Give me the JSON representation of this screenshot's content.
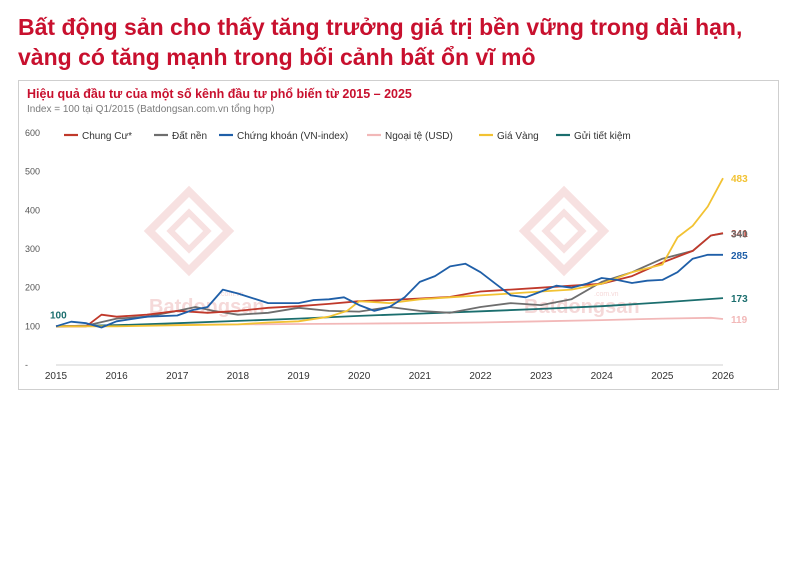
{
  "headline": "Bất động sản cho thấy tăng trưởng giá trị bền vững trong dài hạn, vàng có tăng mạnh trong bối cảnh bất ổn vĩ mô",
  "chart_data": {
    "type": "line",
    "title": "Hiệu quả đầu tư của một số kênh đầu tư phổ biến từ 2015 – 2025",
    "subtitle": "Index = 100 tại Q1/2015 (Batdongsan.com.vn tổng hợp)",
    "xlabel": "",
    "ylabel": "",
    "xlim": [
      2015,
      2026
    ],
    "ylim": [
      0,
      600
    ],
    "x_ticks": [
      "2015",
      "2016",
      "2017",
      "2018",
      "2019",
      "2020",
      "2021",
      "2022",
      "2023",
      "2024",
      "2025",
      "2026"
    ],
    "y_ticks": [
      "-",
      "100",
      "200",
      "300",
      "400",
      "500",
      "600"
    ],
    "y_tick_values": [
      0,
      100,
      200,
      300,
      400,
      500,
      600
    ],
    "grid": false,
    "legend": "top",
    "start_label": {
      "x": 2015,
      "y": 100,
      "text": "100",
      "color": "#1b6e6e"
    },
    "watermark": {
      "text": "Batdongsan",
      "sub": ".com.vn"
    },
    "series": [
      {
        "name": "Chung Cư*",
        "color": "#c0392b",
        "end_label": "341",
        "points": [
          [
            2015,
            100
          ],
          [
            2015.5,
            100
          ],
          [
            2015.75,
            130
          ],
          [
            2016,
            125
          ],
          [
            2016.5,
            130
          ],
          [
            2017,
            140
          ],
          [
            2017.5,
            135
          ],
          [
            2018,
            140
          ],
          [
            2018.5,
            148
          ],
          [
            2019,
            152
          ],
          [
            2019.5,
            158
          ],
          [
            2020,
            165
          ],
          [
            2020.5,
            168
          ],
          [
            2021,
            172
          ],
          [
            2021.5,
            176
          ],
          [
            2022,
            190
          ],
          [
            2022.5,
            195
          ],
          [
            2023,
            200
          ],
          [
            2023.5,
            205
          ],
          [
            2024,
            210
          ],
          [
            2024.5,
            230
          ],
          [
            2025,
            265
          ],
          [
            2025.5,
            295
          ],
          [
            2025.8,
            335
          ],
          [
            2026,
            341
          ]
        ]
      },
      {
        "name": "Đất nền",
        "color": "#6e6e6e",
        "end_label": "340",
        "points": [
          [
            2015,
            100
          ],
          [
            2015.5,
            102
          ],
          [
            2016,
            120
          ],
          [
            2016.5,
            125
          ],
          [
            2017,
            140
          ],
          [
            2017.3,
            150
          ],
          [
            2017.6,
            140
          ],
          [
            2018,
            130
          ],
          [
            2018.5,
            135
          ],
          [
            2019,
            148
          ],
          [
            2019.5,
            140
          ],
          [
            2020,
            138
          ],
          [
            2020.5,
            150
          ],
          [
            2021,
            140
          ],
          [
            2021.5,
            135
          ],
          [
            2022,
            150
          ],
          [
            2022.5,
            160
          ],
          [
            2023,
            155
          ],
          [
            2023.5,
            170
          ],
          [
            2024,
            215
          ],
          [
            2024.5,
            240
          ],
          [
            2025,
            275
          ],
          [
            2025.5,
            295
          ],
          [
            2025.8,
            335
          ],
          [
            2026,
            340
          ]
        ]
      },
      {
        "name": "Chứng khoán (VN-index)",
        "color": "#1f5fa8",
        "end_label": "285",
        "points": [
          [
            2015,
            100
          ],
          [
            2015.25,
            112
          ],
          [
            2015.5,
            108
          ],
          [
            2015.75,
            97
          ],
          [
            2016,
            113
          ],
          [
            2016.5,
            125
          ],
          [
            2017,
            128
          ],
          [
            2017.25,
            142
          ],
          [
            2017.5,
            150
          ],
          [
            2017.75,
            195
          ],
          [
            2018,
            185
          ],
          [
            2018.5,
            160
          ],
          [
            2019,
            160
          ],
          [
            2019.25,
            168
          ],
          [
            2019.5,
            170
          ],
          [
            2019.75,
            175
          ],
          [
            2020,
            155
          ],
          [
            2020.25,
            140
          ],
          [
            2020.5,
            150
          ],
          [
            2020.75,
            175
          ],
          [
            2021,
            215
          ],
          [
            2021.25,
            230
          ],
          [
            2021.5,
            255
          ],
          [
            2021.75,
            262
          ],
          [
            2022,
            240
          ],
          [
            2022.25,
            210
          ],
          [
            2022.5,
            180
          ],
          [
            2022.75,
            175
          ],
          [
            2023,
            190
          ],
          [
            2023.25,
            205
          ],
          [
            2023.5,
            200
          ],
          [
            2023.75,
            210
          ],
          [
            2024,
            225
          ],
          [
            2024.25,
            220
          ],
          [
            2024.5,
            212
          ],
          [
            2024.75,
            218
          ],
          [
            2025,
            220
          ],
          [
            2025.25,
            240
          ],
          [
            2025.5,
            275
          ],
          [
            2025.75,
            285
          ],
          [
            2026,
            285
          ]
        ]
      },
      {
        "name": "Ngoại tệ (USD)",
        "color": "#f2b8b8",
        "end_label": "119",
        "points": [
          [
            2015,
            100
          ],
          [
            2016,
            103
          ],
          [
            2017,
            104
          ],
          [
            2018,
            105
          ],
          [
            2019,
            106
          ],
          [
            2020,
            107
          ],
          [
            2021,
            108
          ],
          [
            2022,
            110
          ],
          [
            2023,
            113
          ],
          [
            2024,
            116
          ],
          [
            2025,
            120
          ],
          [
            2025.8,
            122
          ],
          [
            2026,
            119
          ]
        ]
      },
      {
        "name": "Giá Vàng",
        "color": "#f2c232",
        "end_label": "483",
        "points": [
          [
            2015,
            100
          ],
          [
            2016,
            100
          ],
          [
            2017,
            103
          ],
          [
            2018,
            105
          ],
          [
            2018.5,
            110
          ],
          [
            2019,
            113
          ],
          [
            2019.5,
            125
          ],
          [
            2019.8,
            140
          ],
          [
            2020,
            165
          ],
          [
            2020.5,
            160
          ],
          [
            2021,
            170
          ],
          [
            2021.5,
            175
          ],
          [
            2022,
            180
          ],
          [
            2022.5,
            185
          ],
          [
            2023,
            190
          ],
          [
            2023.5,
            195
          ],
          [
            2024,
            210
          ],
          [
            2024.5,
            240
          ],
          [
            2025,
            260
          ],
          [
            2025.25,
            330
          ],
          [
            2025.5,
            360
          ],
          [
            2025.75,
            410
          ],
          [
            2026,
            483
          ]
        ]
      },
      {
        "name": "Gửi tiết kiệm",
        "color": "#1b6e6e",
        "end_label": "173",
        "points": [
          [
            2015,
            100
          ],
          [
            2016,
            103
          ],
          [
            2017,
            108
          ],
          [
            2018,
            114
          ],
          [
            2019,
            120
          ],
          [
            2020,
            127
          ],
          [
            2021,
            133
          ],
          [
            2022,
            139
          ],
          [
            2023,
            145
          ],
          [
            2024,
            152
          ],
          [
            2025,
            162
          ],
          [
            2026,
            173
          ]
        ]
      }
    ]
  }
}
